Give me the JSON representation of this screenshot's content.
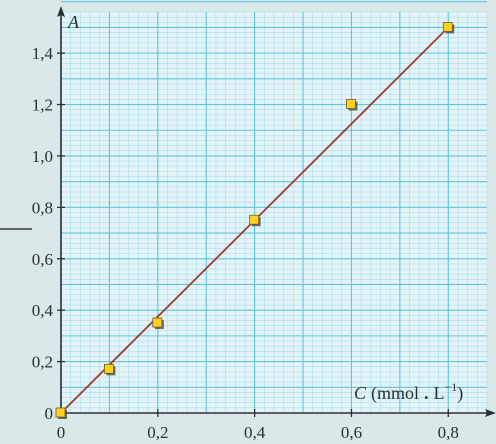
{
  "colors": {
    "background": "#dbe8ea",
    "plot_background": "#e4f3f8",
    "grid_major": "#5ec6df",
    "grid_minor": "#a9dfee",
    "axis": "#2a2f36",
    "line": "#9e3a2e",
    "marker_fill": "#ffd21f",
    "marker_stroke": "#7a5a12",
    "marker_shadow": "#3e4a57",
    "left_rule": "#3b3b3b"
  },
  "chart_data": {
    "type": "scatter",
    "xlabel": {
      "symbol": "C",
      "unit_open": "(mmol",
      "unit_dot": ".",
      "unit_L": "L",
      "unit_exp": "−1",
      "unit_close": ")"
    },
    "ylabel": "A",
    "x_ticks": [
      {
        "value": 0,
        "label": "0"
      },
      {
        "value": 0.2,
        "label": "0,2"
      },
      {
        "value": 0.4,
        "label": "0,4"
      },
      {
        "value": 0.6,
        "label": "0,6"
      },
      {
        "value": 0.8,
        "label": "0,8"
      }
    ],
    "y_ticks": [
      {
        "value": 0,
        "label": "0"
      },
      {
        "value": 0.2,
        "label": "0,2"
      },
      {
        "value": 0.4,
        "label": "0,4"
      },
      {
        "value": 0.6,
        "label": "0,6"
      },
      {
        "value": 0.8,
        "label": "0,8"
      },
      {
        "value": 1.0,
        "label": "1,0"
      },
      {
        "value": 1.2,
        "label": "1,2"
      },
      {
        "value": 1.4,
        "label": "1,4"
      }
    ],
    "xlim": [
      0,
      0.88
    ],
    "ylim": [
      0,
      1.56
    ],
    "grid": true,
    "major_grid_step": {
      "x": 0.1,
      "y": 0.1
    },
    "minor_grid_step": {
      "x": 0.02,
      "y": 0.02
    },
    "series": [
      {
        "x": [
          0,
          0.1,
          0.2,
          0.4,
          0.6,
          0.8
        ],
        "y": [
          0,
          0.17,
          0.35,
          0.75,
          1.2,
          1.5
        ]
      }
    ],
    "fit_line": {
      "x": [
        0,
        0.8
      ],
      "y": [
        0,
        1.5
      ]
    }
  }
}
